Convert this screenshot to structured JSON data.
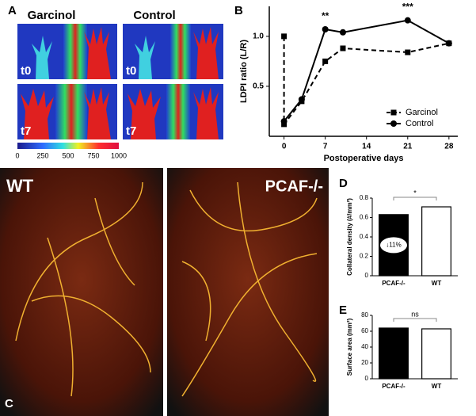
{
  "panel_a": {
    "label": "A",
    "titles": [
      "Garcinol",
      "Control"
    ],
    "time_labels": [
      "t0",
      "t0",
      "t7",
      "t7"
    ],
    "colorbar_ticks": [
      0,
      250,
      500,
      750,
      1000
    ]
  },
  "panel_c": {
    "label": "C",
    "left": "WT",
    "right": "PCAF-/-"
  },
  "chart_data": [
    {
      "type": "line",
      "panel_label": "B",
      "x_label": "Postoperative days",
      "y_label": "LDPI ratio (L/R)",
      "x": [
        0,
        0,
        3,
        7,
        10,
        21,
        28
      ],
      "series": [
        {
          "name": "Garcinol",
          "color": "#000000",
          "marker": "square",
          "dash": true,
          "values": [
            1.0,
            0.12,
            0.35,
            0.75,
            0.88,
            0.84,
            0.93
          ]
        },
        {
          "name": "Control",
          "color": "#000000",
          "marker": "circle",
          "dash": false,
          "values": [
            null,
            0.15,
            0.37,
            1.07,
            1.04,
            1.16,
            0.93
          ]
        }
      ],
      "annotations": [
        {
          "x": 7,
          "y": 1.2,
          "text": "**"
        },
        {
          "x": 21,
          "y": 1.29,
          "text": "***"
        }
      ],
      "xlim": [
        -2.5,
        29.5
      ],
      "ylim": [
        0,
        1.3
      ],
      "xticks": [
        0,
        7,
        14,
        21,
        28
      ],
      "yticks": [
        {
          "value": 0.5,
          "label": "0.5"
        },
        {
          "value": 1.0,
          "label": "1.0"
        }
      ],
      "legend": "bottom-right"
    },
    {
      "type": "bar",
      "panel_label": "D",
      "y_label": "Collateral density (#/mm²)",
      "categories": [
        "PCAF-/-",
        "WT"
      ],
      "values": [
        0.63,
        0.71
      ],
      "colors": [
        "#000000",
        "#ffffff"
      ],
      "ylim": [
        0,
        0.8
      ],
      "yticks": [
        0,
        {
          "value": 0.2,
          "label": "0.2"
        },
        {
          "value": 0.4,
          "label": "0.4"
        },
        {
          "value": 0.6,
          "label": "0.6"
        },
        {
          "value": 0.8,
          "label": "0.8"
        }
      ],
      "significance": "*",
      "bar_note": "↓11%"
    },
    {
      "type": "bar",
      "panel_label": "E",
      "y_label": "Surface area (mm²)",
      "categories": [
        "PCAF-/-",
        "WT"
      ],
      "values": [
        64,
        63
      ],
      "colors": [
        "#000000",
        "#ffffff"
      ],
      "ylim": [
        0,
        80
      ],
      "yticks": [
        0,
        20,
        40,
        60,
        80
      ],
      "significance": "ns"
    }
  ]
}
